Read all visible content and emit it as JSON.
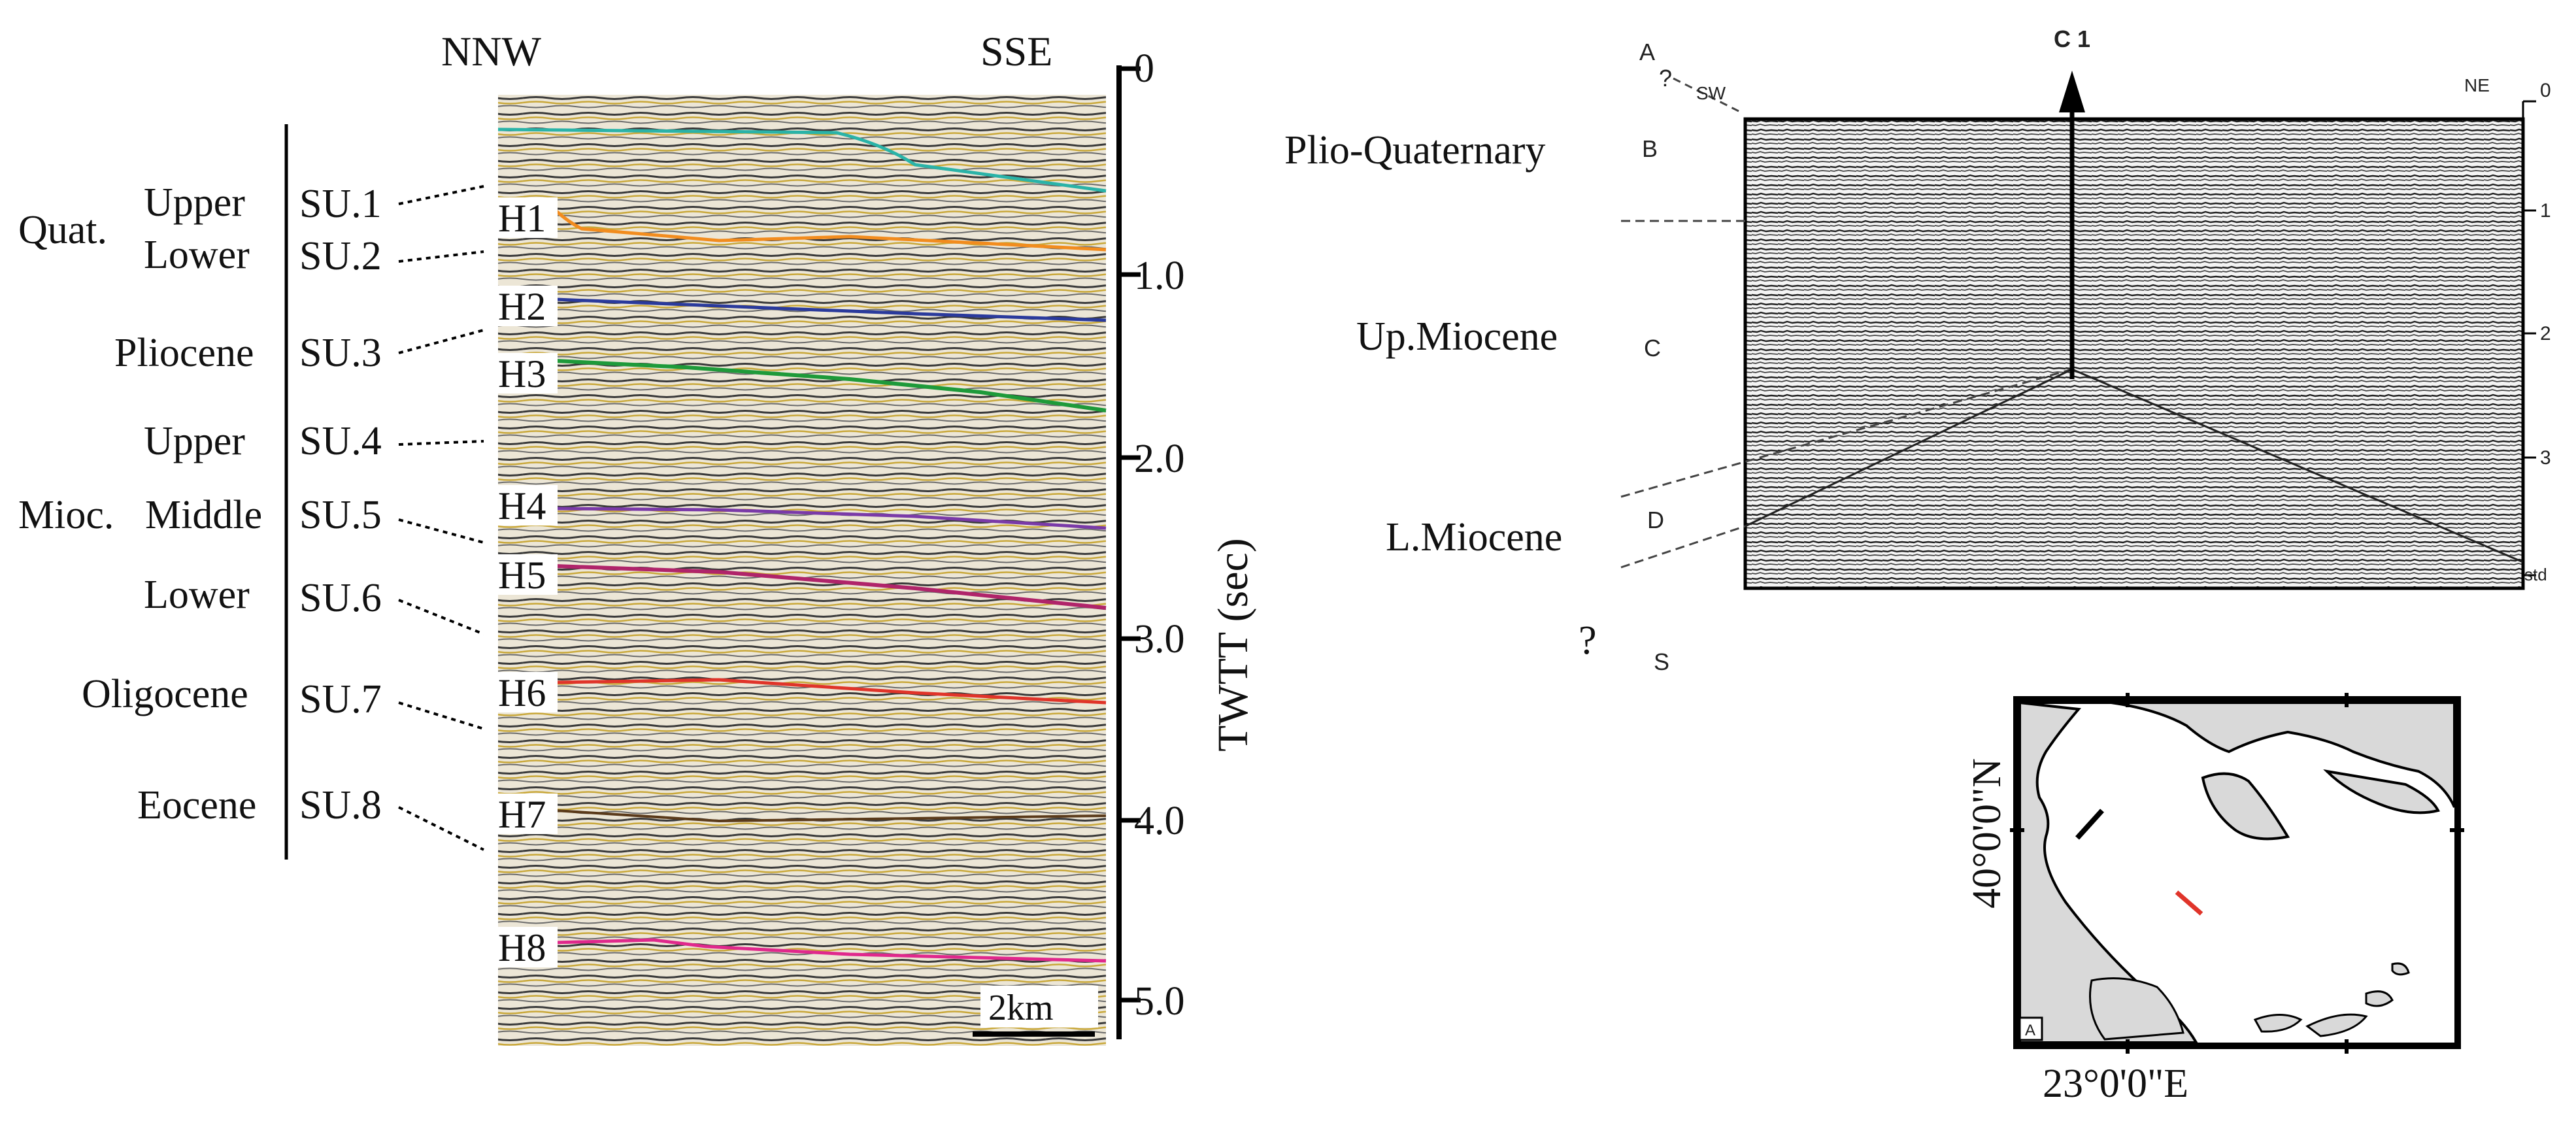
{
  "left_panel": {
    "direction_left": "NNW",
    "direction_right": "SSE",
    "axis_title": "TWTT (sec)",
    "axis_ticks": [
      "0",
      "1.0",
      "2.0",
      "3.0",
      "4.0",
      "5.0"
    ],
    "scale_bar": "2km",
    "age_labels": {
      "quat": "Quat.",
      "upper_q": "Upper",
      "lower_q": "Lower",
      "pliocene": "Pliocene",
      "upper_m": "Upper",
      "mioc": "Mioc.",
      "middle_m": "Middle",
      "lower_m": "Lower",
      "oligocene": "Oligocene",
      "eocene": "Eocene"
    },
    "units": [
      "SU.1",
      "SU.2",
      "SU.3",
      "SU.4",
      "SU.5",
      "SU.6",
      "SU.7",
      "SU.8"
    ],
    "horizons": [
      "H1",
      "H2",
      "H3",
      "H4",
      "H5",
      "H6",
      "H7",
      "H8"
    ],
    "horizon_colors": [
      "#f28c1e",
      "#2a3a9c",
      "#1e9a3a",
      "#7a3aa8",
      "#b0246a",
      "#e0342a",
      "#5a3a1a",
      "#e0288c"
    ],
    "seafloor_color": "#2ab3a8"
  },
  "right_panel": {
    "seq_letters": [
      "A",
      "B",
      "C",
      "D",
      "S"
    ],
    "question": "?",
    "question_bottom": "?",
    "well": "C 1",
    "sw": "SW",
    "ne": "NE",
    "depth_ticks": [
      "0",
      "1",
      "2",
      "3",
      "std"
    ],
    "ages": [
      "Plio-Quaternary",
      "Up.Miocene",
      "L.Miocene"
    ]
  },
  "map": {
    "lat_label": "40°0'0\"N",
    "lon_label": "23°0'0\"E",
    "corner": "A"
  }
}
